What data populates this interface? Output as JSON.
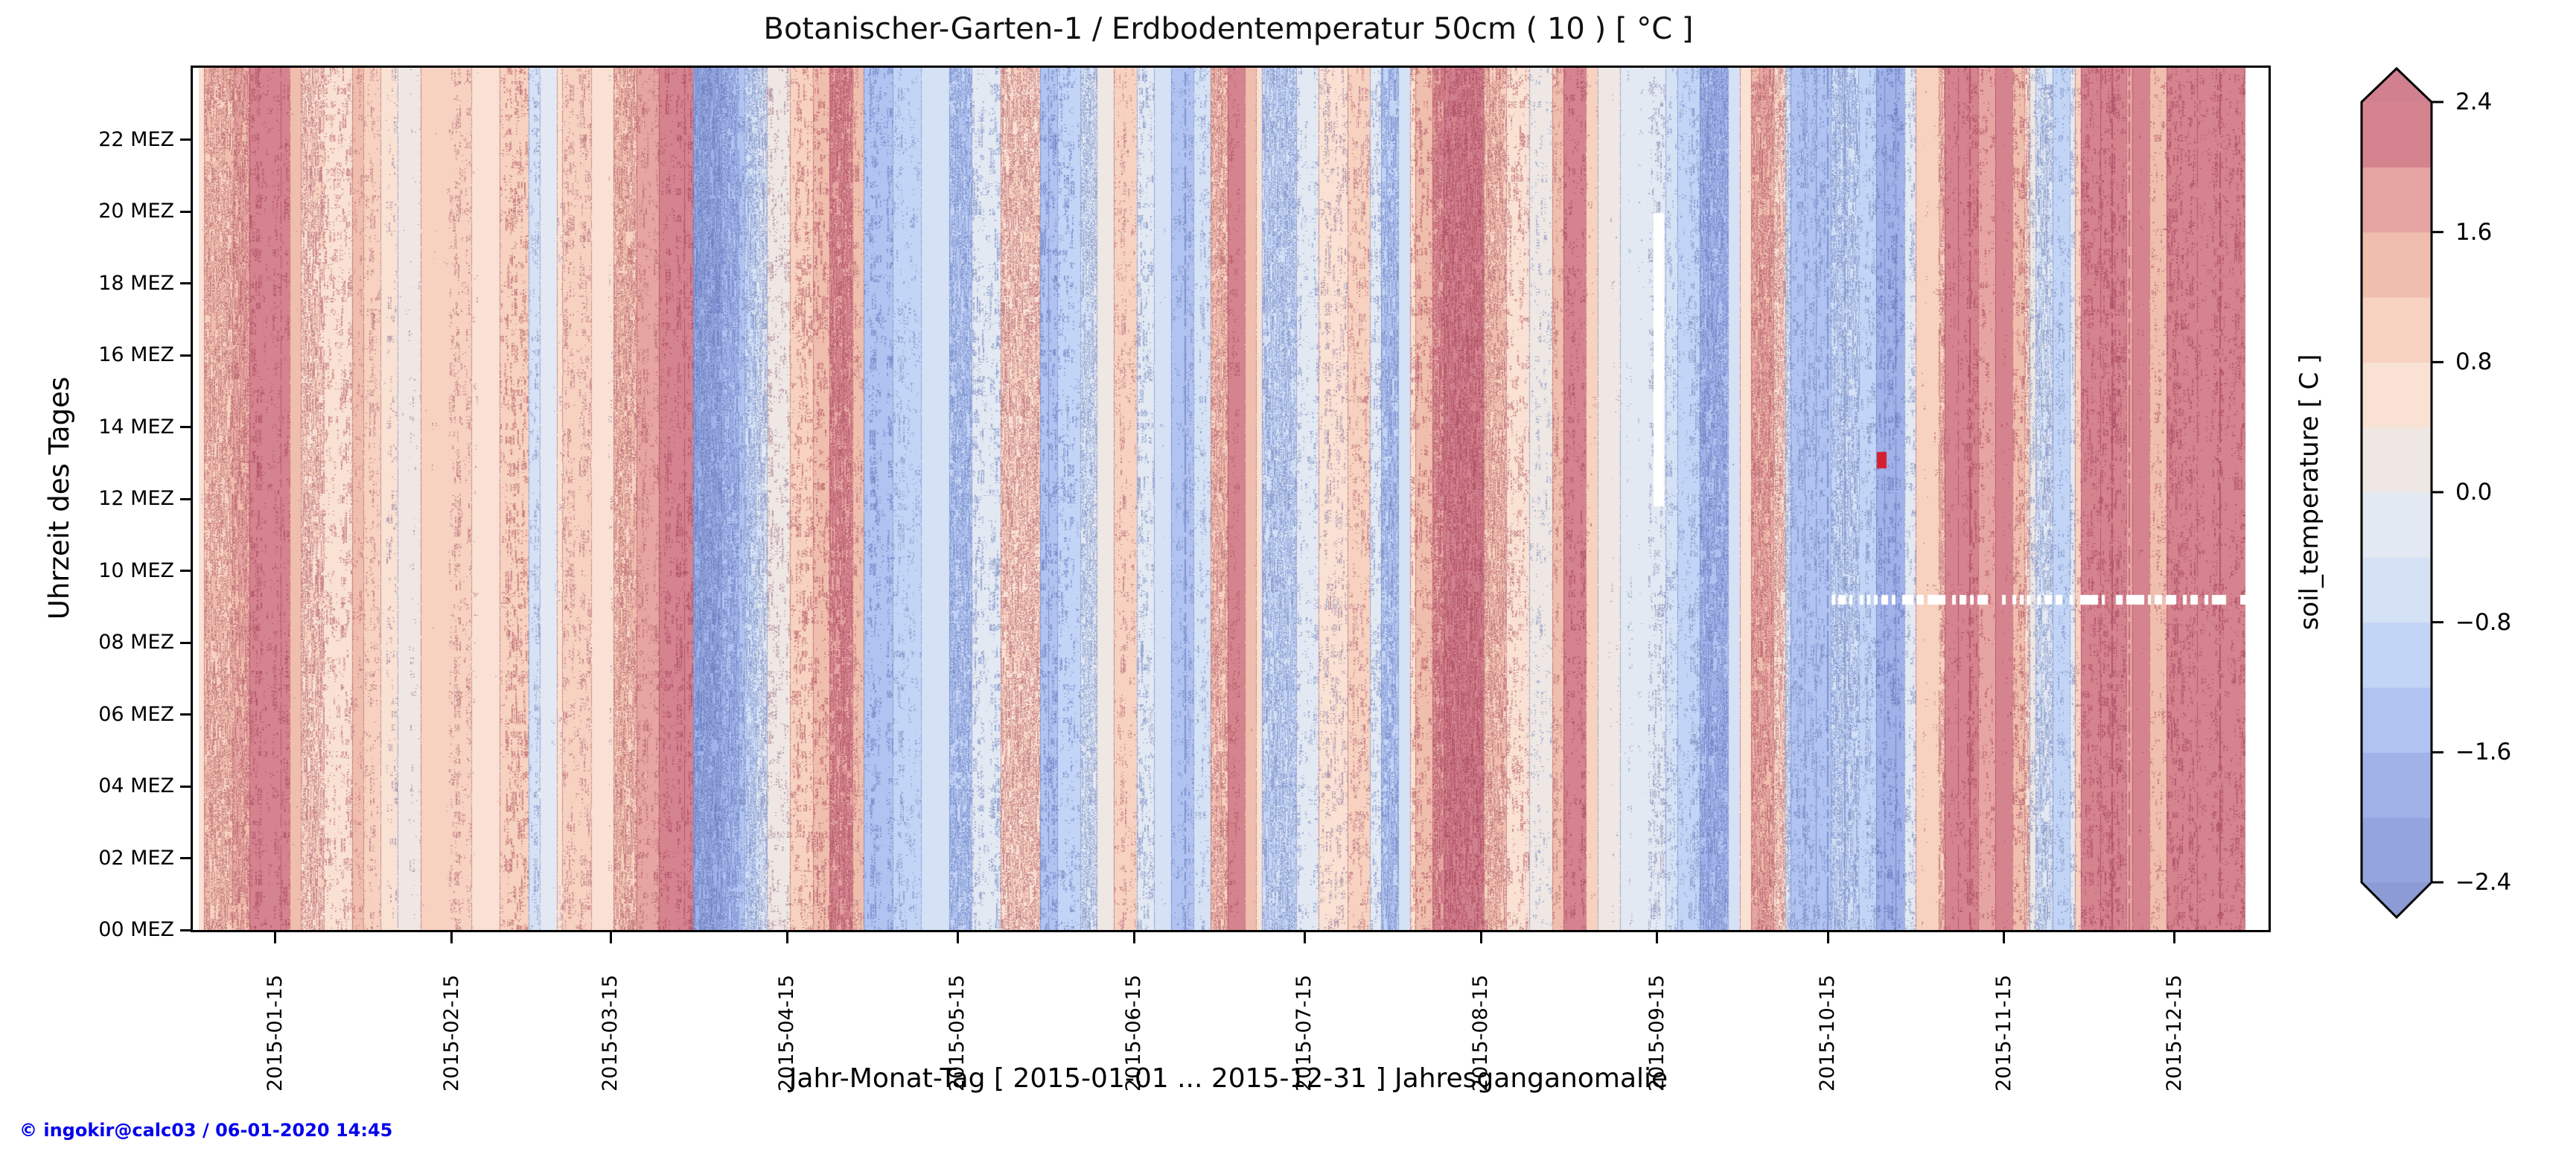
{
  "title": "Botanischer-Garten-1 / Erdbodentemperatur 50cm ( 10 ) [ °C ]",
  "footer": {
    "credit": "© ingokir@calc03 / 06-01-2020 14:45",
    "color": "#0000ee"
  },
  "colorbar": {
    "label": "soil_temperature [ C ]",
    "tick_labels": [
      "2.4",
      "1.6",
      "0.8",
      "0.0",
      "−0.8",
      "−1.6",
      "−2.4"
    ],
    "tick_values": [
      2.4,
      1.6,
      0.8,
      0.0,
      -0.8,
      -1.6,
      -2.4
    ]
  },
  "chart_data": {
    "type": "heatmap",
    "title": "Botanischer-Garten-1 / Erdbodentemperatur 50cm ( 10 ) [ °C ]",
    "xlabel": "Jahr-Monat-Tag [ 2015-01-01 ... 2015-12-31 ] Jahresganganomalie",
    "ylabel": "Uhrzeit des Tages",
    "value_label": "soil_temperature [ C ]",
    "value_unit": "°C anomaly",
    "x_range": [
      "2015-01-01",
      "2015-12-31"
    ],
    "y_range_hours": [
      0,
      24
    ],
    "x_tick_labels": [
      "2015-01-15",
      "2015-02-15",
      "2015-03-15",
      "2015-04-15",
      "2015-05-15",
      "2015-06-15",
      "2015-07-15",
      "2015-08-15",
      "2015-09-15",
      "2015-10-15",
      "2015-11-15",
      "2015-12-15"
    ],
    "x_tick_days": [
      14.5,
      45.5,
      73.5,
      104.5,
      134.5,
      165.5,
      195.5,
      226.5,
      257.5,
      287.5,
      318.5,
      348.5
    ],
    "y_tick_labels": [
      "00 MEZ",
      "02 MEZ",
      "04 MEZ",
      "06 MEZ",
      "08 MEZ",
      "10 MEZ",
      "12 MEZ",
      "14 MEZ",
      "16 MEZ",
      "18 MEZ",
      "20 MEZ",
      "22 MEZ"
    ],
    "y_tick_hours": [
      0,
      2,
      4,
      6,
      8,
      10,
      12,
      14,
      16,
      18,
      20,
      22
    ],
    "levels": [
      -2.4,
      -2.0,
      -1.6,
      -1.2,
      -0.8,
      -0.4,
      0.0,
      0.4,
      0.8,
      1.2,
      1.6,
      2.0,
      2.4
    ],
    "colors": {
      "under": "#8d9bd4",
      "bands": [
        "#94a4dc",
        "#a0b2e8",
        "#b1c3f0",
        "#c3d5f6",
        "#d5e1f5",
        "#e3e9f2",
        "#efe7e3",
        "#f9e1d3",
        "#f7d2c0",
        "#f0bead",
        "#e6a5a2",
        "#d5838f"
      ],
      "over": "#d0808f",
      "warm_edge": "#8b1a38",
      "cool_edge": "#3a4fa0",
      "red_mark": "#d2202f",
      "missing": "#ffffff"
    },
    "daily_anomaly_segments": [
      [
        0,
        1,
        null
      ],
      [
        1,
        2,
        0.6
      ],
      [
        2,
        7,
        1.2
      ],
      [
        7,
        10,
        1.6
      ],
      [
        10,
        17,
        2.3
      ],
      [
        17,
        19,
        1.4
      ],
      [
        19,
        23,
        0.8
      ],
      [
        23,
        28,
        0.7
      ],
      [
        28,
        30,
        1.3
      ],
      [
        30,
        33,
        0.9
      ],
      [
        33,
        36,
        0.55
      ],
      [
        36,
        40,
        0.25
      ],
      [
        40,
        45,
        1.0
      ],
      [
        45,
        49,
        0.9
      ],
      [
        49,
        54,
        0.6
      ],
      [
        54,
        59,
        1.1
      ],
      [
        59,
        61,
        -0.5
      ],
      [
        61,
        64,
        -0.2
      ],
      [
        64,
        65,
        0.5
      ],
      [
        65,
        70,
        0.9
      ],
      [
        70,
        74,
        0.6
      ],
      [
        74,
        78,
        1.2
      ],
      [
        78,
        82,
        1.7
      ],
      [
        82,
        88,
        2.3
      ],
      [
        88,
        93,
        -2.0
      ],
      [
        93,
        96,
        -1.6
      ],
      [
        96,
        97,
        -1.3
      ],
      [
        97,
        99,
        -0.8
      ],
      [
        99,
        101,
        -0.4
      ],
      [
        101,
        105,
        0.3
      ],
      [
        105,
        109,
        1.1
      ],
      [
        109,
        112,
        1.5
      ],
      [
        112,
        116,
        2.0
      ],
      [
        116,
        118,
        1.3
      ],
      [
        118,
        123,
        -1.5
      ],
      [
        123,
        128,
        -0.9
      ],
      [
        128,
        133,
        -0.6
      ],
      [
        133,
        137,
        -1.2
      ],
      [
        137,
        142,
        -0.3
      ],
      [
        142,
        149,
        0.8
      ],
      [
        149,
        152,
        -1.5
      ],
      [
        152,
        156,
        -1.1
      ],
      [
        156,
        159,
        -0.4
      ],
      [
        159,
        162,
        0.2
      ],
      [
        162,
        166,
        0.9
      ],
      [
        166,
        169,
        -0.3
      ],
      [
        169,
        172,
        -0.6
      ],
      [
        172,
        176,
        -1.3
      ],
      [
        176,
        179,
        -0.5
      ],
      [
        179,
        182,
        1.2
      ],
      [
        182,
        184,
        2.1
      ],
      [
        184,
        185,
        2.2
      ],
      [
        185,
        187,
        1.4
      ],
      [
        187,
        188,
        0.6
      ],
      [
        188,
        194,
        -0.8
      ],
      [
        194,
        198,
        -0.3
      ],
      [
        198,
        203,
        0.5
      ],
      [
        203,
        207,
        0.9
      ],
      [
        207,
        209,
        -0.3
      ],
      [
        209,
        212,
        -1.2
      ],
      [
        212,
        214,
        -0.6
      ],
      [
        214,
        215,
        0.7
      ],
      [
        215,
        218,
        1.5
      ],
      [
        218,
        220,
        2.0
      ],
      [
        220,
        227,
        2.4
      ],
      [
        227,
        231,
        1.2
      ],
      [
        231,
        235,
        0.7
      ],
      [
        235,
        239,
        0.1
      ],
      [
        239,
        241,
        1.3
      ],
      [
        241,
        245,
        2.3
      ],
      [
        245,
        247,
        1.0
      ],
      [
        247,
        251,
        0.2
      ],
      [
        251,
        256,
        -0.15
      ],
      [
        256,
        259,
        -0.1
      ],
      [
        259,
        261,
        -0.5
      ],
      [
        261,
        265,
        -0.9
      ],
      [
        265,
        270,
        -1.6
      ],
      [
        270,
        272,
        -0.6
      ],
      [
        272,
        274,
        0.6
      ],
      [
        274,
        278,
        1.6
      ],
      [
        278,
        280,
        0.8
      ],
      [
        280,
        281,
        -0.4
      ],
      [
        281,
        288,
        -1.3
      ],
      [
        288,
        293,
        -0.8
      ],
      [
        293,
        296,
        -0.9
      ],
      [
        296,
        301,
        -1.9
      ],
      [
        301,
        303,
        -0.3
      ],
      [
        303,
        307,
        1.0
      ],
      [
        307,
        308,
        1.2
      ],
      [
        308,
        314,
        2.3
      ],
      [
        314,
        317,
        1.9
      ],
      [
        317,
        320,
        2.2
      ],
      [
        320,
        322,
        1.5
      ],
      [
        322,
        323,
        0.8
      ],
      [
        323,
        324,
        0.1
      ],
      [
        324,
        327,
        -0.4
      ],
      [
        327,
        330,
        -0.9
      ],
      [
        330,
        331,
        -0.3
      ],
      [
        331,
        332,
        0.9
      ],
      [
        332,
        340,
        2.3
      ],
      [
        340,
        341,
        1.8
      ],
      [
        341,
        344,
        2.2
      ],
      [
        344,
        347,
        1.5
      ],
      [
        347,
        361,
        2.3
      ],
      [
        361,
        365,
        null
      ]
    ],
    "artifacts": {
      "missing_column": {
        "days": [
          256.9,
          258.7
        ],
        "hours": [
          11.8,
          19.95
        ]
      },
      "dashed_missing_row": {
        "hour_band": [
          9.05,
          9.32
        ],
        "days": [
          287,
          362
        ]
      },
      "red_mark": {
        "days": [
          296.2,
          297.8
        ],
        "hours": [
          12.85,
          13.3
        ]
      },
      "warm_hairline_days": [
        15,
        86,
        114,
        310,
        312,
        335,
        337,
        340,
        352,
        356
      ],
      "cool_hairline_days": [
        150,
        174,
        266,
        283,
        285,
        287,
        290,
        297,
        299
      ]
    }
  }
}
